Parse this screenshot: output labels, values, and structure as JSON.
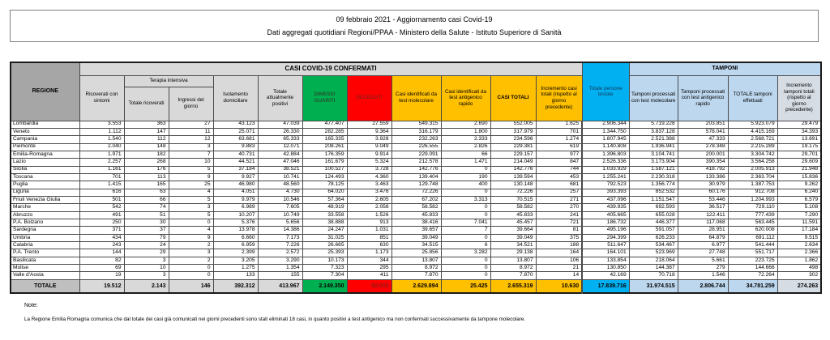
{
  "title": {
    "line1": "09 febbraio 2021 - Aggiornamento casi Covid-19",
    "line2": "Dati aggregati quotidiani Regioni/PPAA - Ministero della Salute - Istituto Superiore di Sanità"
  },
  "colors": {
    "green": "#00B050",
    "red": "#FF0000",
    "yellow": "#FFC000",
    "cyan": "#00B0F0",
    "light_blue": "#BDD7EE",
    "blue_gray": "#D6DCE4",
    "header_gray": "#A6A6A6",
    "light_gray": "#D9D9D9",
    "total_gray": "#BFBFBF"
  },
  "table": {
    "groups": {
      "regione": "REGIONE",
      "casi_confermati": "CASI COVID-19 CONFERMATI",
      "terapia_intensiva": "Terapia intensiva",
      "tamponi": "TAMPONI"
    },
    "columns": [
      "Ricoverati con sintomi",
      "Totale ricoverati",
      "Ingressi del giorno",
      "Isolamento domiciliare",
      "Totale attualmente positivi",
      "DIMESSI GUARITI",
      "DECEDUTI",
      "Casi identificati da test molecolare",
      "Casi identificati da test antigenico rapido",
      "CASI TOTALI",
      "Incremento casi totali (rispetto al giorno precedente)",
      "Totale persone testate",
      "Tamponi processati con test molecolare",
      "Tamponi processati con test antigenico rapido",
      "TOTALE tamponi effettuati",
      "Incremento tamponi totali (rispetto al giorno precedente)"
    ],
    "rows": [
      {
        "regione": "Lombardia",
        "values": [
          "3.553",
          "363",
          "27",
          "43.123",
          "47.039",
          "477.407",
          "27.559",
          "549.315",
          "2.690",
          "552.005",
          "1.625",
          "2.906.344",
          "5.719.228",
          "203.851",
          "5.923.079",
          "29.479"
        ]
      },
      {
        "regione": "Veneto",
        "values": [
          "1.112",
          "147",
          "11",
          "25.071",
          "26.330",
          "282.285",
          "9.364",
          "316.179",
          "1.800",
          "317.979",
          "701",
          "1.344.750",
          "3.837.128",
          "578.041",
          "4.415.169",
          "34.393"
        ]
      },
      {
        "regione": "Campania",
        "values": [
          "1.540",
          "112",
          "12",
          "63.681",
          "65.333",
          "165.335",
          "3.928",
          "232.263",
          "2.333",
          "234.596",
          "1.274",
          "1.807.945",
          "2.521.388",
          "47.333",
          "2.568.721",
          "13.691"
        ]
      },
      {
        "regione": "Piemonte",
        "values": [
          "2.040",
          "148",
          "3",
          "9.883",
          "12.071",
          "208.261",
          "9.049",
          "226.555",
          "2.826",
          "229.381",
          "619",
          "1.140.808",
          "1.936.941",
          "278.348",
          "2.215.289",
          "19.175"
        ]
      },
      {
        "regione": "Emilia-Romagna",
        "values": [
          "1.971",
          "182",
          "7",
          "40.731",
          "42.884",
          "176.359",
          "9.914",
          "229.091",
          "66",
          "229.157",
          "977",
          "1.396.803",
          "3.104.741",
          "200.001",
          "3.304.742",
          "29.701"
        ]
      },
      {
        "regione": "Lazio",
        "values": [
          "2.257",
          "268",
          "10",
          "44.521",
          "47.046",
          "161.679",
          "5.324",
          "212.578",
          "1.471",
          "214.049",
          "847",
          "2.526.336",
          "3.173.904",
          "390.354",
          "3.564.258",
          "29.609"
        ]
      },
      {
        "regione": "Sicilia",
        "values": [
          "1.161",
          "176",
          "5",
          "37.184",
          "38.521",
          "100.527",
          "3.728",
          "142.776",
          "0",
          "142.776",
          "744",
          "1.033.929",
          "1.587.121",
          "418.792",
          "2.005.913",
          "21.948"
        ]
      },
      {
        "regione": "Toscana",
        "values": [
          "701",
          "113",
          "9",
          "9.927",
          "10.741",
          "124.493",
          "4.360",
          "139.404",
          "190",
          "139.594",
          "453",
          "1.255.241",
          "2.230.318",
          "133.386",
          "2.363.704",
          "15.836"
        ]
      },
      {
        "regione": "Puglia",
        "values": [
          "1.415",
          "165",
          "25",
          "46.980",
          "48.560",
          "78.125",
          "3.463",
          "129.748",
          "400",
          "130.148",
          "681",
          "792.523",
          "1.356.774",
          "30.979",
          "1.387.753",
          "9.262"
        ]
      },
      {
        "regione": "Liguria",
        "values": [
          "616",
          "63",
          "4",
          "4.051",
          "4.730",
          "64.020",
          "3.476",
          "72.226",
          "0",
          "72.226",
          "257",
          "393.393",
          "852.532",
          "60.176",
          "912.708",
          "6.240"
        ]
      },
      {
        "regione": "Friuli Venezia Giulia",
        "values": [
          "501",
          "66",
          "5",
          "9.979",
          "10.546",
          "57.364",
          "2.605",
          "67.202",
          "3.313",
          "70.515",
          "271",
          "437.096",
          "1.151.547",
          "53.446",
          "1.204.993",
          "6.579"
        ]
      },
      {
        "regione": "Marche",
        "values": [
          "542",
          "74",
          "3",
          "6.989",
          "7.605",
          "48.919",
          "2.058",
          "58.582",
          "0",
          "58.582",
          "270",
          "439.935",
          "692.593",
          "36.517",
          "729.110",
          "5.108"
        ]
      },
      {
        "regione": "Abruzzo",
        "values": [
          "491",
          "51",
          "5",
          "10.207",
          "10.749",
          "33.558",
          "1.526",
          "45.833",
          "0",
          "45.833",
          "241",
          "405.665",
          "655.028",
          "122.411",
          "777.439",
          "7.290"
        ]
      },
      {
        "regione": "P.A. Bolzano",
        "values": [
          "250",
          "30",
          "0",
          "5.376",
          "5.656",
          "38.888",
          "913",
          "38.416",
          "7.041",
          "45.457",
          "721",
          "186.732",
          "446.377",
          "117.068",
          "563.445",
          "11.591"
        ]
      },
      {
        "regione": "Sardegna",
        "values": [
          "371",
          "37",
          "4",
          "13.978",
          "14.386",
          "24.247",
          "1.031",
          "39.657",
          "7",
          "39.664",
          "81",
          "495.196",
          "591.057",
          "28.951",
          "620.008",
          "17.184"
        ]
      },
      {
        "regione": "Umbria",
        "values": [
          "434",
          "79",
          "9",
          "6.660",
          "7.173",
          "31.025",
          "851",
          "39.049",
          "0",
          "39.049",
          "375",
          "294.399",
          "626.233",
          "64.879",
          "691.112",
          "9.515"
        ]
      },
      {
        "regione": "Calabria",
        "values": [
          "243",
          "24",
          "2",
          "6.959",
          "7.226",
          "26.665",
          "630",
          "34.515",
          "6",
          "34.521",
          "188",
          "511.647",
          "534.467",
          "6.977",
          "541.444",
          "2.634"
        ]
      },
      {
        "regione": "P.A. Trento",
        "values": [
          "144",
          "29",
          "3",
          "2.399",
          "2.572",
          "25.393",
          "1.173",
          "25.856",
          "3.282",
          "29.138",
          "164",
          "164.101",
          "523.969",
          "27.748",
          "551.717",
          "2.366"
        ]
      },
      {
        "regione": "Basilicata",
        "values": [
          "82",
          "3",
          "2",
          "3.205",
          "3.290",
          "10.173",
          "344",
          "13.807",
          "0",
          "13.807",
          "106",
          "133.854",
          "218.064",
          "5.661",
          "223.725",
          "1.862"
        ]
      },
      {
        "regione": "Molise",
        "values": [
          "69",
          "10",
          "0",
          "1.275",
          "1.354",
          "7.323",
          "295",
          "8.972",
          "0",
          "8.972",
          "21",
          "130.850",
          "144.387",
          "279",
          "144.666",
          "498"
        ]
      },
      {
        "regione": "Valle d'Aosta",
        "values": [
          "19",
          "3",
          "0",
          "133",
          "155",
          "7.304",
          "411",
          "7.870",
          "0",
          "7.870",
          "14",
          "42.169",
          "70.718",
          "1.546",
          "72.264",
          "302"
        ]
      }
    ],
    "total": {
      "regione": "TOTALE",
      "values": [
        "19.512",
        "2.143",
        "146",
        "392.312",
        "413.967",
        "2.149.350",
        "92.002",
        "2.629.894",
        "25.425",
        "2.655.319",
        "10.630",
        "17.839.716",
        "31.974.515",
        "2.806.744",
        "34.781.259",
        "274.263"
      ]
    }
  },
  "notes": {
    "label": "Note:",
    "text": "La Regione Emilia Romagna comunica che dal totale dei casi già comunicati nei giorni precedenti sono stati eliminati 18 casi, in quanto positivi a test antigenico ma non confermati successivamente da tampone molecolare."
  }
}
